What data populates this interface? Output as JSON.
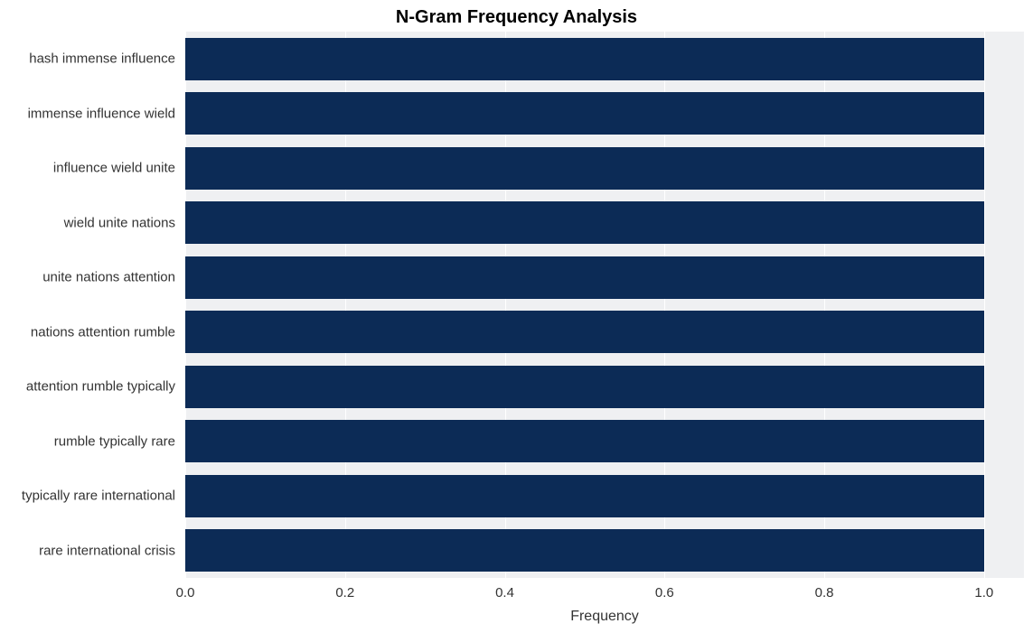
{
  "chart": {
    "type": "bar-horizontal",
    "title": "N-Gram Frequency Analysis",
    "title_fontsize": 20,
    "title_fontweight": "bold",
    "title_color": "#000000",
    "xlabel": "Frequency",
    "xlabel_fontsize": 16,
    "xlabel_color": "#333333",
    "tick_fontsize": 15,
    "tick_color": "#333333",
    "background_color": "#ffffff",
    "plot_background_color": "#eff0f2",
    "grid_color": "#ffffff",
    "grid_linewidth": 1,
    "bar_color": "#0c2b56",
    "bar_height_ratio": 0.77,
    "xlim": [
      0.0,
      1.0
    ],
    "xmax_pad": 1.05,
    "xticks": [
      0.0,
      0.2,
      0.4,
      0.6,
      0.8,
      1.0
    ],
    "xtick_labels": [
      "0.0",
      "0.2",
      "0.4",
      "0.6",
      "0.8",
      "1.0"
    ],
    "categories": [
      "hash immense influence",
      "immense influence wield",
      "influence wield unite",
      "wield unite nations",
      "unite nations attention",
      "nations attention rumble",
      "attention rumble typically",
      "rumble typically rare",
      "typically rare international",
      "rare international crisis"
    ],
    "values": [
      1.0,
      1.0,
      1.0,
      1.0,
      1.0,
      1.0,
      1.0,
      1.0,
      1.0,
      1.0
    ]
  }
}
